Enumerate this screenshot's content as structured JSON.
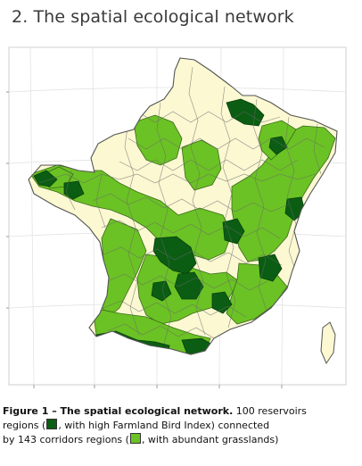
{
  "title": "2. The spatial ecological network",
  "caption": {
    "bold": "Figure 1 – The spatial ecological network.",
    "part1": " 100 reservoirs",
    "line2_a": "regions (",
    "line2_b": ", with high Farmland Bird Index) connected",
    "line3_a": "by 143 corridors regions (",
    "line3_b": ", with abundant grasslands)"
  },
  "legend": {
    "reservoir_color": "#0b5d13",
    "corridor_color": "#6bc224",
    "other_color": "#fbf8d2"
  },
  "colors": {
    "border": "#555555",
    "graticule": "#e3e3e3",
    "background": "#ffffff"
  },
  "map_stats": {
    "reservoir_regions": 100,
    "corridor_regions": 143
  }
}
